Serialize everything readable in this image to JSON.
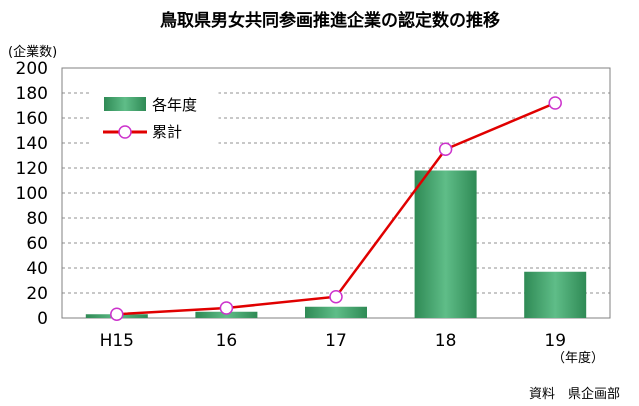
{
  "chart_data": {
    "type": "bar",
    "title": "鳥取県男女共同参画推進企業の認定数の推移",
    "ylabel": "(企業数)",
    "xlabel": "（年度）",
    "categories": [
      "H15",
      "16",
      "17",
      "18",
      "19"
    ],
    "ylim": [
      0,
      200
    ],
    "yticks": [
      0,
      20,
      40,
      60,
      80,
      100,
      120,
      140,
      160,
      180,
      200
    ],
    "grid": true,
    "legend_position": "top-left",
    "series": [
      {
        "name": "各年度",
        "type": "bar",
        "color": "#3a9a62",
        "values": [
          3,
          5,
          9,
          118,
          37
        ]
      },
      {
        "name": "累計",
        "type": "line",
        "color": "#e00000",
        "marker_color": "#cc33cc",
        "values": [
          3,
          8,
          17,
          135,
          172
        ]
      }
    ],
    "source": "資料　県企画部"
  }
}
